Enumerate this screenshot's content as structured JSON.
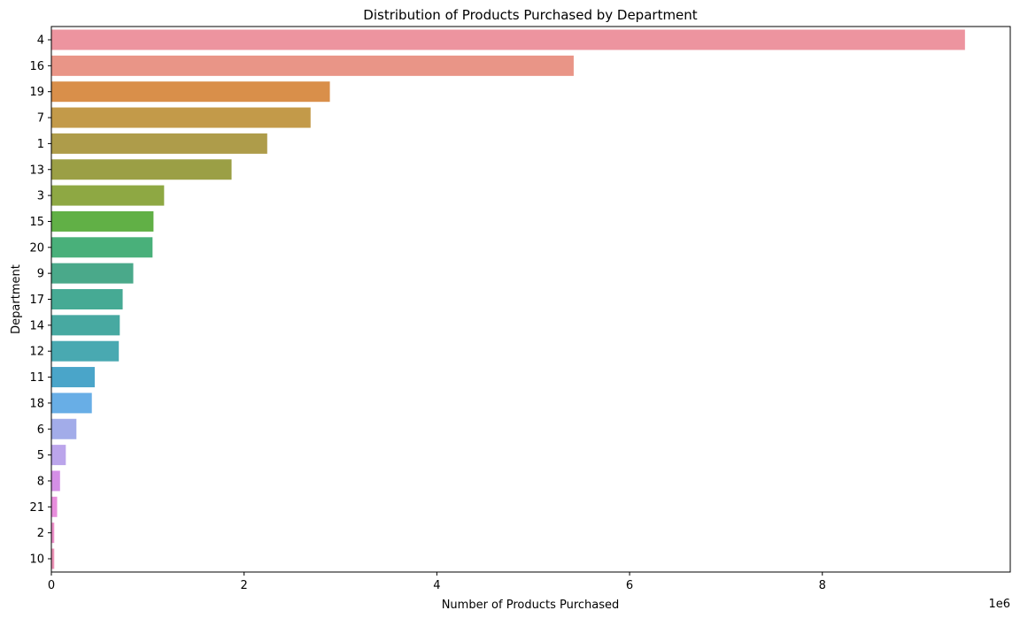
{
  "chart_data": {
    "type": "bar",
    "orientation": "horizontal",
    "title": "Distribution of Products Purchased by Department",
    "xlabel": "Number of Products Purchased",
    "ylabel": "Department",
    "x_offset_label": "1e6",
    "xlim": [
      0,
      10000000
    ],
    "x_ticks": [
      0,
      2000000,
      4000000,
      6000000,
      8000000
    ],
    "x_tick_labels": [
      "0",
      "2",
      "4",
      "6",
      "8"
    ],
    "grid": false,
    "legend": "none",
    "categories": [
      "4",
      "16",
      "19",
      "7",
      "1",
      "13",
      "3",
      "15",
      "20",
      "9",
      "17",
      "14",
      "12",
      "11",
      "18",
      "6",
      "5",
      "8",
      "21",
      "2",
      "10"
    ],
    "values": [
      9480000,
      5420000,
      2890000,
      2690000,
      2240000,
      1870000,
      1170000,
      1060000,
      1050000,
      850000,
      740000,
      710000,
      700000,
      450000,
      420000,
      260000,
      150000,
      90000,
      60000,
      30000,
      30000
    ],
    "colors": [
      "#ed949f",
      "#e99587",
      "#d98f4a",
      "#c39a49",
      "#ae9c4a",
      "#9b9f45",
      "#8ea843",
      "#61b046",
      "#49b07a",
      "#4aa98a",
      "#46aa94",
      "#47a9a1",
      "#49a9b1",
      "#4aa5c9",
      "#68aee6",
      "#a2ace9",
      "#bba5eb",
      "#d48fe6",
      "#e78ddc",
      "#ec8ec8",
      "#ed92b6"
    ]
  }
}
